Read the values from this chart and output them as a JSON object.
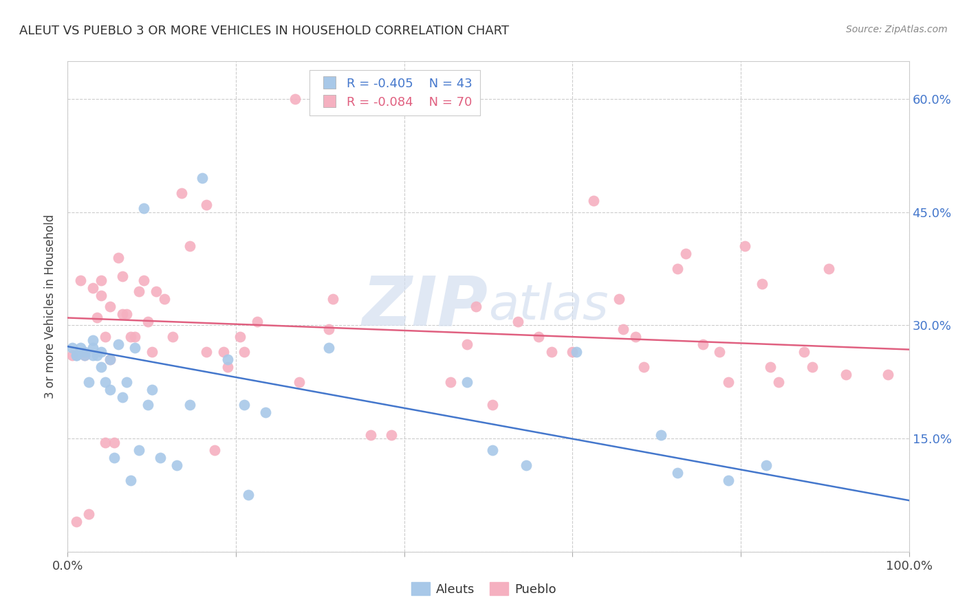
{
  "title": "ALEUT VS PUEBLO 3 OR MORE VEHICLES IN HOUSEHOLD CORRELATION CHART",
  "source": "Source: ZipAtlas.com",
  "ylabel": "3 or more Vehicles in Household",
  "xmin": 0.0,
  "xmax": 1.0,
  "ymin": 0.0,
  "ymax": 0.65,
  "yticks": [
    0.0,
    0.15,
    0.3,
    0.45,
    0.6
  ],
  "xticks": [
    0.0,
    0.2,
    0.4,
    0.6,
    0.8,
    1.0
  ],
  "xtick_labels_bottom": [
    "0.0%",
    "",
    "",
    "",
    "",
    "100.0%"
  ],
  "right_ytick_labels": [
    "",
    "15.0%",
    "30.0%",
    "45.0%",
    "60.0%"
  ],
  "aleut_R": -0.405,
  "aleut_N": 43,
  "pueblo_R": -0.084,
  "pueblo_N": 70,
  "aleut_color": "#a8c8e8",
  "pueblo_color": "#f5b0c0",
  "aleut_line_color": "#4477cc",
  "pueblo_line_color": "#e06080",
  "watermark_color": "#d4dff0",
  "aleut_line_y0": 0.272,
  "aleut_line_y1": 0.068,
  "pueblo_line_y0": 0.31,
  "pueblo_line_y1": 0.268,
  "aleut_x": [
    0.005,
    0.01,
    0.01,
    0.015,
    0.02,
    0.02,
    0.025,
    0.03,
    0.03,
    0.03,
    0.035,
    0.04,
    0.04,
    0.045,
    0.05,
    0.05,
    0.055,
    0.06,
    0.065,
    0.07,
    0.075,
    0.08,
    0.085,
    0.09,
    0.095,
    0.1,
    0.11,
    0.13,
    0.145,
    0.16,
    0.19,
    0.21,
    0.215,
    0.235,
    0.31,
    0.475,
    0.505,
    0.545,
    0.605,
    0.705,
    0.725,
    0.785,
    0.83
  ],
  "aleut_y": [
    0.27,
    0.26,
    0.26,
    0.27,
    0.265,
    0.26,
    0.225,
    0.28,
    0.27,
    0.26,
    0.26,
    0.265,
    0.245,
    0.225,
    0.255,
    0.215,
    0.125,
    0.275,
    0.205,
    0.225,
    0.095,
    0.27,
    0.135,
    0.455,
    0.195,
    0.215,
    0.125,
    0.115,
    0.195,
    0.495,
    0.255,
    0.195,
    0.075,
    0.185,
    0.27,
    0.225,
    0.135,
    0.115,
    0.265,
    0.155,
    0.105,
    0.095,
    0.115
  ],
  "pueblo_x": [
    0.005,
    0.01,
    0.015,
    0.02,
    0.025,
    0.03,
    0.035,
    0.04,
    0.04,
    0.045,
    0.045,
    0.05,
    0.05,
    0.055,
    0.06,
    0.065,
    0.065,
    0.07,
    0.075,
    0.08,
    0.085,
    0.09,
    0.095,
    0.1,
    0.105,
    0.115,
    0.125,
    0.135,
    0.145,
    0.165,
    0.165,
    0.175,
    0.185,
    0.19,
    0.205,
    0.21,
    0.225,
    0.27,
    0.275,
    0.31,
    0.315,
    0.36,
    0.385,
    0.455,
    0.475,
    0.485,
    0.505,
    0.535,
    0.56,
    0.575,
    0.625,
    0.655,
    0.66,
    0.675,
    0.685,
    0.725,
    0.735,
    0.755,
    0.775,
    0.785,
    0.805,
    0.825,
    0.835,
    0.845,
    0.875,
    0.885,
    0.905,
    0.925,
    0.975,
    0.6
  ],
  "pueblo_y": [
    0.26,
    0.04,
    0.36,
    0.26,
    0.05,
    0.35,
    0.31,
    0.36,
    0.34,
    0.285,
    0.145,
    0.325,
    0.255,
    0.145,
    0.39,
    0.365,
    0.315,
    0.315,
    0.285,
    0.285,
    0.345,
    0.36,
    0.305,
    0.265,
    0.345,
    0.335,
    0.285,
    0.475,
    0.405,
    0.46,
    0.265,
    0.135,
    0.265,
    0.245,
    0.285,
    0.265,
    0.305,
    0.6,
    0.225,
    0.295,
    0.335,
    0.155,
    0.155,
    0.225,
    0.275,
    0.325,
    0.195,
    0.305,
    0.285,
    0.265,
    0.465,
    0.335,
    0.295,
    0.285,
    0.245,
    0.375,
    0.395,
    0.275,
    0.265,
    0.225,
    0.405,
    0.355,
    0.245,
    0.225,
    0.265,
    0.245,
    0.375,
    0.235,
    0.235,
    0.265
  ]
}
